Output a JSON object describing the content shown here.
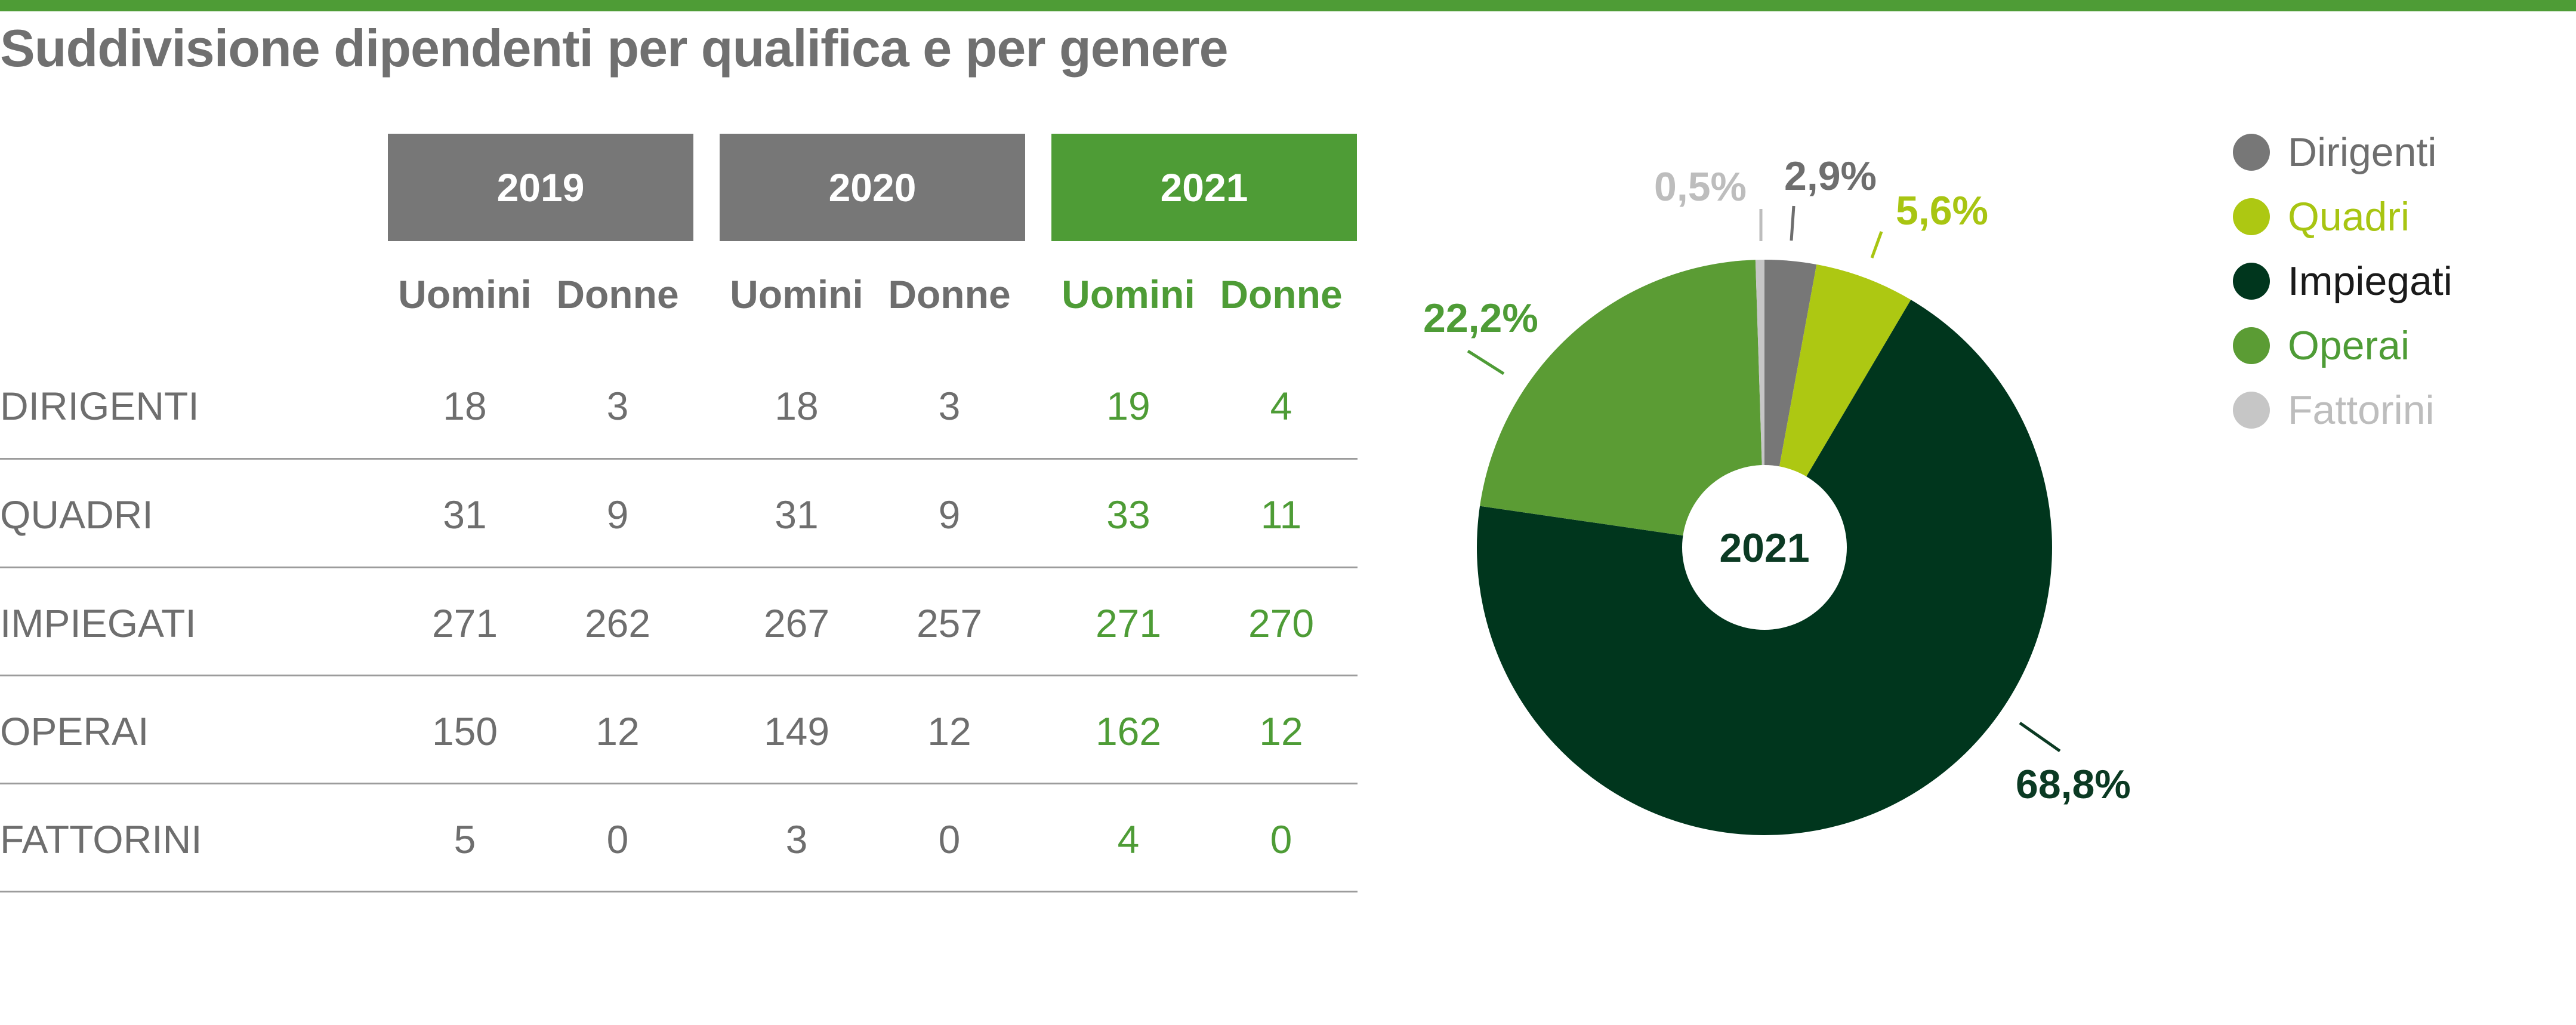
{
  "title": "Suddivisione dipendenti per qualifica e per genere",
  "colors": {
    "bar": "#4e9c36",
    "year_gray": "#777777",
    "year_highlight": "#4e9c36",
    "text_gray": "#6e6e6e",
    "text_green": "#4e9c36"
  },
  "table": {
    "years": [
      "2019",
      "2020",
      "2021"
    ],
    "subheaders": [
      "Uomini",
      "Donne"
    ],
    "rows": [
      {
        "label": "DIRIGENTI",
        "values": [
          "18",
          "3",
          "18",
          "3",
          "19",
          "4"
        ]
      },
      {
        "label": "QUADRI",
        "values": [
          "31",
          "9",
          "31",
          "9",
          "33",
          "11"
        ]
      },
      {
        "label": "IMPIEGATI",
        "values": [
          "271",
          "262",
          "267",
          "257",
          "271",
          "270"
        ]
      },
      {
        "label": "OPERAI",
        "values": [
          "150",
          "12",
          "149",
          "12",
          "162",
          "12"
        ]
      },
      {
        "label": "FATTORINI",
        "values": [
          "5",
          "0",
          "3",
          "0",
          "4",
          "0"
        ]
      }
    ]
  },
  "chart_data": {
    "type": "pie",
    "title": "",
    "center_label": "2021",
    "slices": [
      {
        "name": "Dirigenti",
        "value": 2.9,
        "label": "2,9%",
        "color": "#777777",
        "label_color": "#6e6e6e"
      },
      {
        "name": "Quadri",
        "value": 5.6,
        "label": "5,6%",
        "color": "#adc812",
        "label_color": "#a8c512"
      },
      {
        "name": "Impiegati",
        "value": 68.8,
        "label": "68,8%",
        "color": "#00361d",
        "label_color": "#0b3a23"
      },
      {
        "name": "Operai",
        "value": 22.2,
        "label": "22,2%",
        "color": "#5b9c34",
        "label_color": "#4e9c36"
      },
      {
        "name": "Fattorini",
        "value": 0.5,
        "label": "0,5%",
        "color": "#c6c6c6",
        "label_color": "#bdbdbd"
      }
    ],
    "legend": [
      {
        "label": "Dirigenti",
        "color": "#777777",
        "text_color": "#6e6e6e"
      },
      {
        "label": "Quadri",
        "color": "#adc812",
        "text_color": "#a8c512"
      },
      {
        "label": "Impiegati",
        "color": "#00361d",
        "text_color": "#1a1a1a"
      },
      {
        "label": "Operai",
        "color": "#5b9c34",
        "text_color": "#4e9c36"
      },
      {
        "label": "Fattorini",
        "color": "#c6c6c6",
        "text_color": "#bdbdbd"
      }
    ],
    "legend_position": "top-right"
  }
}
